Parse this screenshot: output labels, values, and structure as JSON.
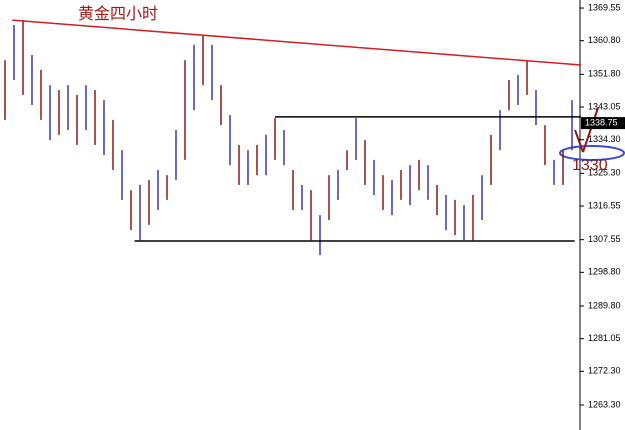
{
  "chart_data": {
    "type": "ohlc",
    "title": "黄金四小时",
    "title_color": "#a01818",
    "high": [
      1355.6,
      1365.0,
      1366.3,
      1357.0,
      1353.0,
      1348.9,
      1347.6,
      1348.9,
      1346.3,
      1348.9,
      1347.6,
      1344.9,
      1339.6,
      1331.5,
      1320.8,
      1322.2,
      1323.5,
      1326.2,
      1324.8,
      1336.9,
      1355.6,
      1359.7,
      1362.3,
      1359.7,
      1348.9,
      1340.9,
      1332.9,
      1331.5,
      1332.9,
      1335.6,
      1340.1,
      1336.9,
      1326.2,
      1322.2,
      1320.8,
      1314.1,
      1324.8,
      1326.2,
      1331.5,
      1340.1,
      1334.2,
      1328.9,
      1324.8,
      1323.5,
      1326.2,
      1327.5,
      1328.9,
      1327.5,
      1322.2,
      1319.5,
      1318.2,
      1316.8,
      1319.5,
      1324.8,
      1335.6,
      1342.2,
      1350.3,
      1351.6,
      1355.6,
      1347.6,
      1338.2,
      1328.9,
      1331.5,
      1344.9
    ],
    "low": [
      1339.6,
      1350.3,
      1346.3,
      1343.6,
      1339.6,
      1334.2,
      1335.6,
      1336.9,
      1332.9,
      1336.9,
      1332.9,
      1330.2,
      1326.2,
      1318.2,
      1310.1,
      1307.4,
      1311.5,
      1315.5,
      1318.2,
      1323.5,
      1328.9,
      1342.2,
      1348.9,
      1344.9,
      1338.2,
      1327.5,
      1322.2,
      1322.2,
      1324.8,
      1324.8,
      1328.9,
      1327.5,
      1315.5,
      1315.5,
      1307.4,
      1303.4,
      1312.8,
      1318.2,
      1326.2,
      1328.9,
      1322.2,
      1319.5,
      1315.5,
      1314.1,
      1318.2,
      1316.8,
      1320.8,
      1318.2,
      1314.1,
      1310.1,
      1308.8,
      1307.4,
      1307.4,
      1312.8,
      1322.2,
      1331.5,
      1342.2,
      1343.6,
      1346.3,
      1338.2,
      1327.5,
      1322.2,
      1322.2,
      1331.5
    ],
    "bar_colors": [
      "#8b1a1a",
      "#3a3a9a"
    ],
    "ylim": [
      1256.6,
      1371.7
    ],
    "yticks": [
      1369.55,
      {
        "value": 1360.8,
        "label": "1360.80"
      },
      {
        "value": 1351.8,
        "label": "1351.80"
      },
      1343.05,
      {
        "value": 1334.3,
        "label": "1334.30"
      },
      {
        "value": 1325.3,
        "label": "1325.30"
      },
      1316.55,
      1307.55,
      {
        "value": 1298.8,
        "label": "1298.80"
      },
      {
        "value": 1289.8,
        "label": "1289.80"
      },
      1281.05,
      {
        "value": 1272.3,
        "label": "1272.30"
      },
      {
        "value": 1263.3,
        "label": "1263.30"
      }
    ],
    "current_price": 1338.75,
    "lines": [
      {
        "x": [
          0.8,
          64.0
        ],
        "y": [
          1366.3,
          1354.3
        ],
        "color": "#d02020"
      },
      {
        "x": [
          30.0,
          64.0
        ],
        "y": [
          1340.4,
          1340.4
        ],
        "color": "#000000"
      },
      {
        "x": [
          14.4,
          63.3
        ],
        "y": [
          1307.2,
          1307.2
        ],
        "color": "#000000"
      }
    ],
    "annotation": "1330",
    "annotation_color": "#8b1a1a"
  }
}
